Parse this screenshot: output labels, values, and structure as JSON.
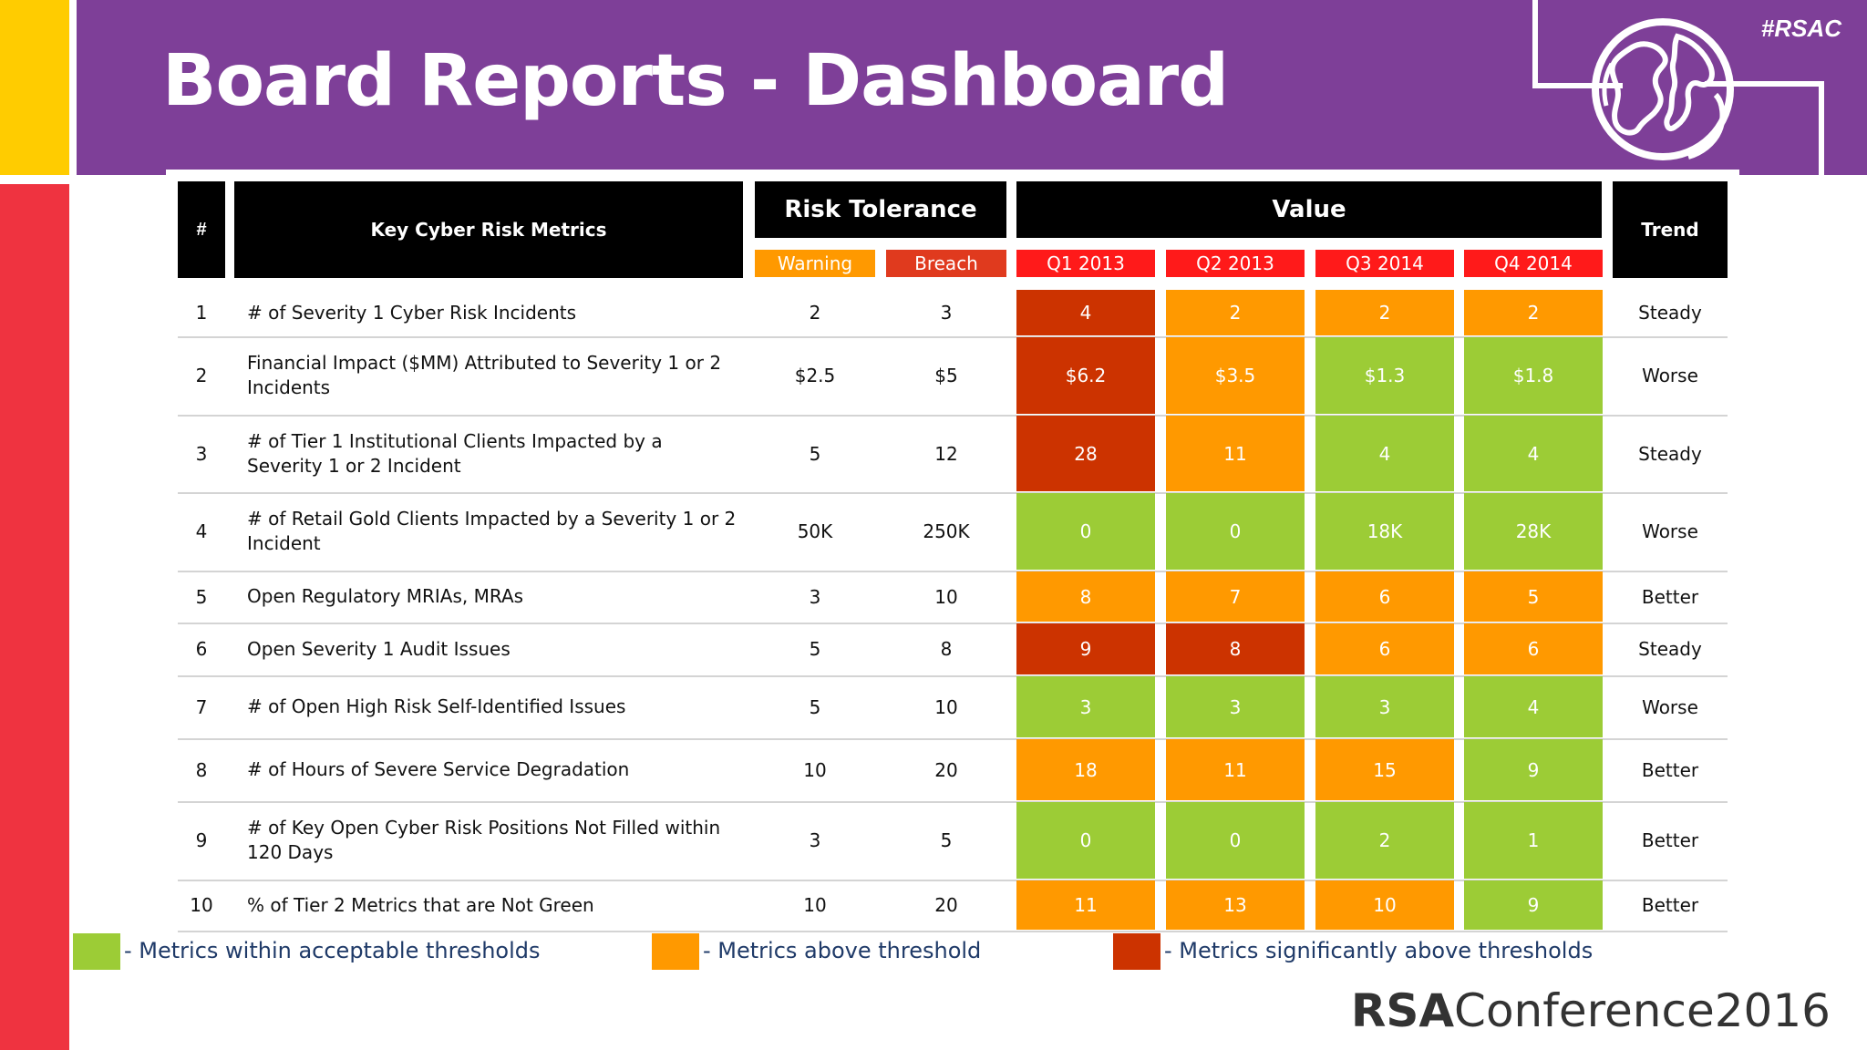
{
  "slide": {
    "title": "Board Reports - Dashboard",
    "hashtag": "#RSAC",
    "footer_brand": "RSA",
    "footer_conference": "Conference2016"
  },
  "colors": {
    "purple": "#7e3f98",
    "yellow": "#ffcc00",
    "red_bar": "#ef3340",
    "green": "#9ccc36",
    "orange": "#ff9900",
    "dark_red": "#cc3300",
    "warning_orange": "#ff9900",
    "breach_red": "#e03a1e",
    "quarter_red": "#ff1a1a"
  },
  "table": {
    "headers": {
      "num": "#",
      "metric": "Key Cyber Risk Metrics",
      "risk_tolerance": "Risk Tolerance",
      "value": "Value",
      "trend": "Trend",
      "warning": "Warning",
      "breach": "Breach",
      "quarters": [
        "Q1 2013",
        "Q2 2013",
        "Q3 2014",
        "Q4 2014"
      ]
    },
    "rows": [
      {
        "num": "1",
        "metric": "# of Severity 1 Cyber Risk Incidents",
        "warning": "2",
        "breach": "3",
        "values": [
          "4",
          "2",
          "2",
          "2"
        ],
        "status": [
          "dark_red",
          "orange",
          "orange",
          "orange"
        ],
        "trend": "Steady"
      },
      {
        "num": "2",
        "metric": "Financial Impact ($MM) Attributed to Severity 1 or 2 Incidents",
        "warning": "$2.5",
        "breach": "$5",
        "values": [
          "$6.2",
          "$3.5",
          "$1.3",
          "$1.8"
        ],
        "status": [
          "dark_red",
          "orange",
          "green",
          "green"
        ],
        "trend": "Worse"
      },
      {
        "num": "3",
        "metric": "# of Tier 1 Institutional Clients Impacted by a Severity 1 or 2 Incident",
        "warning": "5",
        "breach": "12",
        "values": [
          "28",
          "11",
          "4",
          "4"
        ],
        "status": [
          "dark_red",
          "orange",
          "green",
          "green"
        ],
        "trend": "Steady"
      },
      {
        "num": "4",
        "metric": "# of Retail Gold Clients Impacted by a Severity 1 or 2 Incident",
        "warning": "50K",
        "breach": "250K",
        "values": [
          "0",
          "0",
          "18K",
          "28K"
        ],
        "status": [
          "green",
          "green",
          "green",
          "green"
        ],
        "trend": "Worse"
      },
      {
        "num": "5",
        "metric": "Open Regulatory MRIAs, MRAs",
        "warning": "3",
        "breach": "10",
        "values": [
          "8",
          "7",
          "6",
          "5"
        ],
        "status": [
          "orange",
          "orange",
          "orange",
          "orange"
        ],
        "trend": "Better"
      },
      {
        "num": "6",
        "metric": "Open Severity 1 Audit Issues",
        "warning": "5",
        "breach": "8",
        "values": [
          "9",
          "8",
          "6",
          "6"
        ],
        "status": [
          "dark_red",
          "dark_red",
          "orange",
          "orange"
        ],
        "trend": "Steady"
      },
      {
        "num": "7",
        "metric": "# of Open High Risk Self-Identified Issues",
        "warning": "5",
        "breach": "10",
        "values": [
          "3",
          "3",
          "3",
          "4"
        ],
        "status": [
          "green",
          "green",
          "green",
          "green"
        ],
        "trend": "Worse"
      },
      {
        "num": "8",
        "metric": "# of Hours of Severe Service Degradation",
        "warning": "10",
        "breach": "20",
        "values": [
          "18",
          "11",
          "15",
          "9"
        ],
        "status": [
          "orange",
          "orange",
          "orange",
          "green"
        ],
        "trend": "Better"
      },
      {
        "num": "9",
        "metric": "# of Key Open Cyber Risk Positions Not Filled within 120 Days",
        "warning": "3",
        "breach": "5",
        "values": [
          "0",
          "0",
          "2",
          "1"
        ],
        "status": [
          "green",
          "green",
          "green",
          "green"
        ],
        "trend": "Better"
      },
      {
        "num": "10",
        "metric": "% of Tier 2 Metrics that are Not Green",
        "warning": "10",
        "breach": "20",
        "values": [
          "11",
          "13",
          "10",
          "9"
        ],
        "status": [
          "orange",
          "orange",
          "orange",
          "green"
        ],
        "trend": "Better"
      }
    ]
  },
  "legend": [
    {
      "color": "green",
      "text": "- Metrics within acceptable thresholds"
    },
    {
      "color": "orange",
      "text": "- Metrics above threshold"
    },
    {
      "color": "dark_red",
      "text": "- Metrics significantly above thresholds"
    }
  ]
}
